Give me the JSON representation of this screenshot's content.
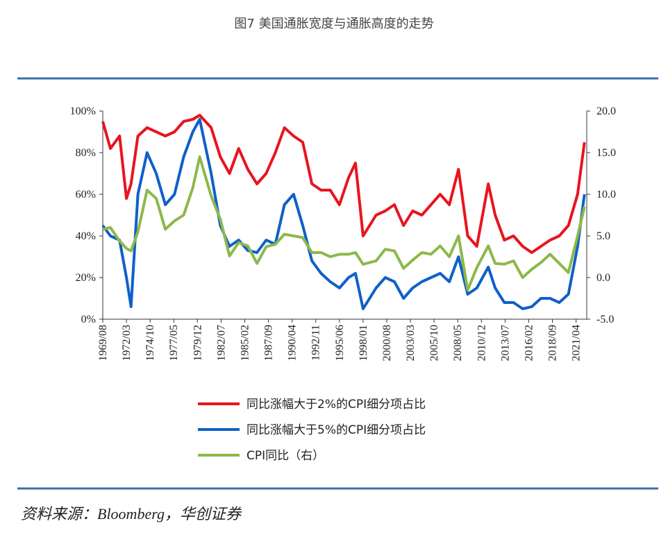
{
  "chart_data": {
    "type": "line",
    "title": "图7 美国通胀宽度与通胀高度的走势",
    "source": "资料来源：Bloomberg，华创证券",
    "x": [
      "1969/08",
      "1970/06",
      "1971/06",
      "1972/03",
      "1972/09",
      "1973/06",
      "1974/06",
      "1975/06",
      "1976/06",
      "1977/06",
      "1978/06",
      "1979/06",
      "1980/03",
      "1981/06",
      "1982/06",
      "1983/06",
      "1984/06",
      "1985/06",
      "1986/06",
      "1987/06",
      "1988/06",
      "1989/06",
      "1990/06",
      "1991/06",
      "1992/06",
      "1993/06",
      "1994/06",
      "1995/06",
      "1996/06",
      "1997/03",
      "1998/01",
      "1999/06",
      "2000/06",
      "2001/06",
      "2002/06",
      "2003/06",
      "2004/06",
      "2005/06",
      "2006/06",
      "2007/06",
      "2008/06",
      "2009/06",
      "2010/06",
      "2011/09",
      "2012/06",
      "2013/06",
      "2014/06",
      "2015/06",
      "2016/06",
      "2017/06",
      "2018/06",
      "2019/06",
      "2020/06",
      "2021/06",
      "2022/03"
    ],
    "xlim": [
      "1969/08",
      "2022/06"
    ],
    "xticks": [
      "1969/08",
      "1972/03",
      "1974/10",
      "1977/05",
      "1979/12",
      "1982/07",
      "1985/02",
      "1987/09",
      "1990/04",
      "1992/11",
      "1995/06",
      "1998/01",
      "2000/08",
      "2003/03",
      "2005/10",
      "2008/05",
      "2010/12",
      "2013/07",
      "2016/02",
      "2018/09",
      "2021/04"
    ],
    "ylim": [
      0,
      100
    ],
    "yticks": [
      {
        "value": 0,
        "label": "0%"
      },
      {
        "value": 20,
        "label": "20%"
      },
      {
        "value": 40,
        "label": "40%"
      },
      {
        "value": 60,
        "label": "60%"
      },
      {
        "value": 80,
        "label": "80%"
      },
      {
        "value": 100,
        "label": "100%"
      }
    ],
    "y2lim": [
      -5,
      20
    ],
    "y2ticks": [
      {
        "value": -5,
        "label": "-5.0"
      },
      {
        "value": 0,
        "label": "0.0"
      },
      {
        "value": 5,
        "label": "5.0"
      },
      {
        "value": 10,
        "label": "10.0"
      },
      {
        "value": 15,
        "label": "15.0"
      },
      {
        "value": 20,
        "label": "20.0"
      }
    ],
    "series": [
      {
        "name": "同比涨幅大于2%的CPI细分项占比",
        "color": "#e8141e",
        "values": [
          95,
          82,
          88,
          58,
          65,
          88,
          92,
          90,
          88,
          90,
          95,
          96,
          98,
          92,
          78,
          70,
          82,
          72,
          65,
          70,
          80,
          92,
          88,
          85,
          65,
          62,
          62,
          55,
          68,
          75,
          40,
          50,
          52,
          55,
          45,
          52,
          50,
          55,
          60,
          55,
          72,
          40,
          35,
          65,
          50,
          38,
          40,
          35,
          32,
          35,
          38,
          40,
          45,
          60,
          85
        ]
      },
      {
        "name": "同比涨幅大于5%的CPI细分项占比",
        "color": "#1060c8",
        "values": [
          45,
          40,
          38,
          20,
          6,
          60,
          80,
          70,
          55,
          60,
          78,
          90,
          96,
          70,
          45,
          35,
          38,
          33,
          32,
          38,
          36,
          55,
          60,
          45,
          28,
          22,
          18,
          15,
          20,
          22,
          5,
          15,
          20,
          18,
          10,
          15,
          18,
          20,
          22,
          18,
          30,
          12,
          15,
          25,
          15,
          8,
          8,
          5,
          6,
          10,
          10,
          8,
          12,
          35,
          60
        ]
      },
      {
        "name": "CPI同比（右）",
        "color": "#8db84a",
        "axis": "y2",
        "values": [
          5.8,
          6.0,
          4.4,
          3.5,
          3.2,
          5.5,
          10.5,
          9.5,
          5.8,
          6.8,
          7.5,
          10.8,
          14.5,
          9.8,
          7.0,
          2.6,
          4.2,
          3.8,
          1.7,
          3.7,
          4.0,
          5.2,
          5.0,
          4.8,
          3.0,
          3.0,
          2.5,
          2.8,
          2.8,
          3.0,
          1.6,
          2.0,
          3.4,
          3.2,
          1.1,
          2.1,
          3.0,
          2.8,
          3.8,
          2.5,
          5.0,
          -1.5,
          1.2,
          3.8,
          1.7,
          1.6,
          2.0,
          0.0,
          1.0,
          1.8,
          2.8,
          1.7,
          0.6,
          5.0,
          8.5
        ]
      }
    ]
  }
}
